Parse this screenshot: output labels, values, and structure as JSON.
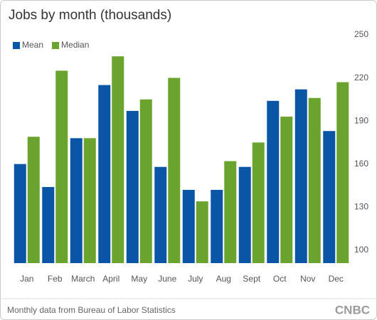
{
  "chart_data": {
    "type": "bar",
    "title": "Jobs by month (thousands)",
    "categories": [
      "Jan",
      "Feb",
      "March",
      "April",
      "May",
      "June",
      "July",
      "Aug",
      "Sept",
      "Oct",
      "Nov",
      "Dec"
    ],
    "series": [
      {
        "name": "Mean",
        "color": "#0b55a6",
        "values": [
          164,
          148,
          182,
          219,
          201,
          162,
          146,
          146,
          162,
          208,
          216,
          187
        ]
      },
      {
        "name": "Median",
        "color": "#6aa42f",
        "values": [
          183,
          229,
          182,
          239,
          209,
          224,
          138,
          166,
          179,
          197,
          210,
          221
        ]
      }
    ],
    "ylim": [
      95,
      250
    ],
    "yticks": [
      100,
      130,
      160,
      190,
      220,
      250
    ],
    "grid": false,
    "legend": "top-left",
    "source": "Monthly data from Bureau of Labor Statistics",
    "logo": "CNBC"
  }
}
